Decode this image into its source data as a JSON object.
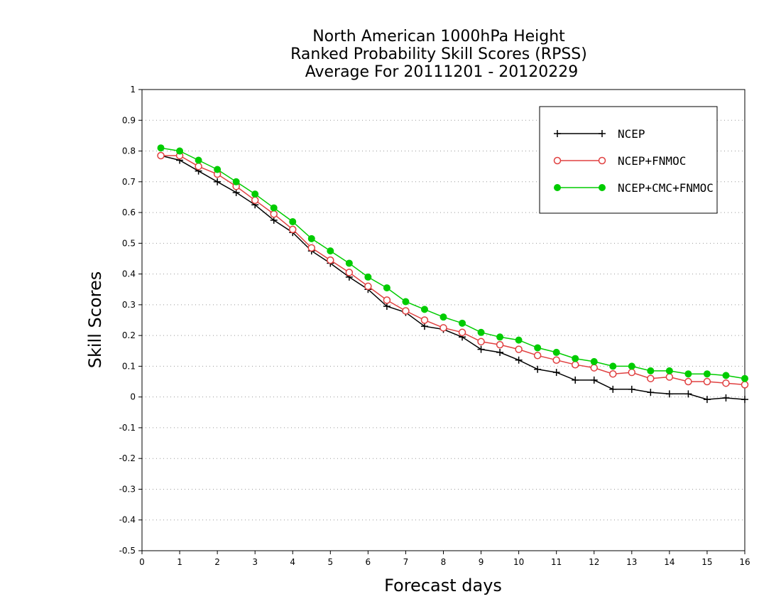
{
  "chart_data": {
    "type": "line",
    "title_lines": [
      "North American 1000hPa Height",
      "Ranked Probability Skill Scores (RPSS)",
      "Average For 20111201 - 20120229"
    ],
    "xlabel": "Forecast days",
    "ylabel": "Skill Scores",
    "xlim": [
      0,
      16
    ],
    "ylim": [
      -0.5,
      1
    ],
    "x_ticks": [
      "0",
      "1",
      "2",
      "3",
      "4",
      "5",
      "6",
      "7",
      "8",
      "9",
      "10",
      "11",
      "12",
      "13",
      "14",
      "15",
      "16"
    ],
    "y_ticks": [
      "1",
      "0.9",
      "0.8",
      "0.7",
      "0.6",
      "0.5",
      "0.4",
      "0.3",
      "0.2",
      "0.1",
      "0",
      "-0.1",
      "-0.2",
      "-0.3",
      "-0.4",
      "-0.5"
    ],
    "grid": "horizontal dotted",
    "legend_position": "top-right",
    "x": [
      0.5,
      1,
      1.5,
      2,
      2.5,
      3,
      3.5,
      4,
      4.5,
      5,
      5.5,
      6,
      6.5,
      7,
      7.5,
      8,
      8.5,
      9,
      9.5,
      10,
      10.5,
      11,
      11.5,
      12,
      12.5,
      13,
      13.5,
      14,
      14.5,
      15,
      15.5,
      16
    ],
    "series": [
      {
        "name": "NCEP",
        "color": "#000000",
        "marker": "plus",
        "values": [
          0.785,
          0.77,
          0.735,
          0.7,
          0.665,
          0.625,
          0.575,
          0.535,
          0.475,
          0.435,
          0.39,
          0.35,
          0.295,
          0.275,
          0.23,
          0.22,
          0.195,
          0.155,
          0.145,
          0.12,
          0.09,
          0.08,
          0.055,
          0.055,
          0.025,
          0.025,
          0.015,
          0.01,
          0.01,
          -0.008,
          -0.003,
          -0.008
        ]
      },
      {
        "name": "NCEP+FNMOC",
        "color": "#e04040",
        "marker": "open-circle",
        "values": [
          0.785,
          0.785,
          0.75,
          0.725,
          0.685,
          0.64,
          0.595,
          0.545,
          0.485,
          0.445,
          0.405,
          0.36,
          0.315,
          0.28,
          0.25,
          0.225,
          0.21,
          0.18,
          0.17,
          0.155,
          0.135,
          0.12,
          0.105,
          0.095,
          0.075,
          0.08,
          0.06,
          0.065,
          0.05,
          0.05,
          0.045,
          0.04
        ]
      },
      {
        "name": "NCEP+CMC+FNMOC",
        "color": "#00cc00",
        "marker": "filled-circle",
        "values": [
          0.81,
          0.8,
          0.77,
          0.74,
          0.7,
          0.66,
          0.615,
          0.57,
          0.515,
          0.475,
          0.435,
          0.39,
          0.355,
          0.31,
          0.285,
          0.26,
          0.24,
          0.21,
          0.195,
          0.185,
          0.16,
          0.145,
          0.125,
          0.115,
          0.1,
          0.1,
          0.085,
          0.085,
          0.075,
          0.075,
          0.07,
          0.06
        ]
      }
    ]
  }
}
